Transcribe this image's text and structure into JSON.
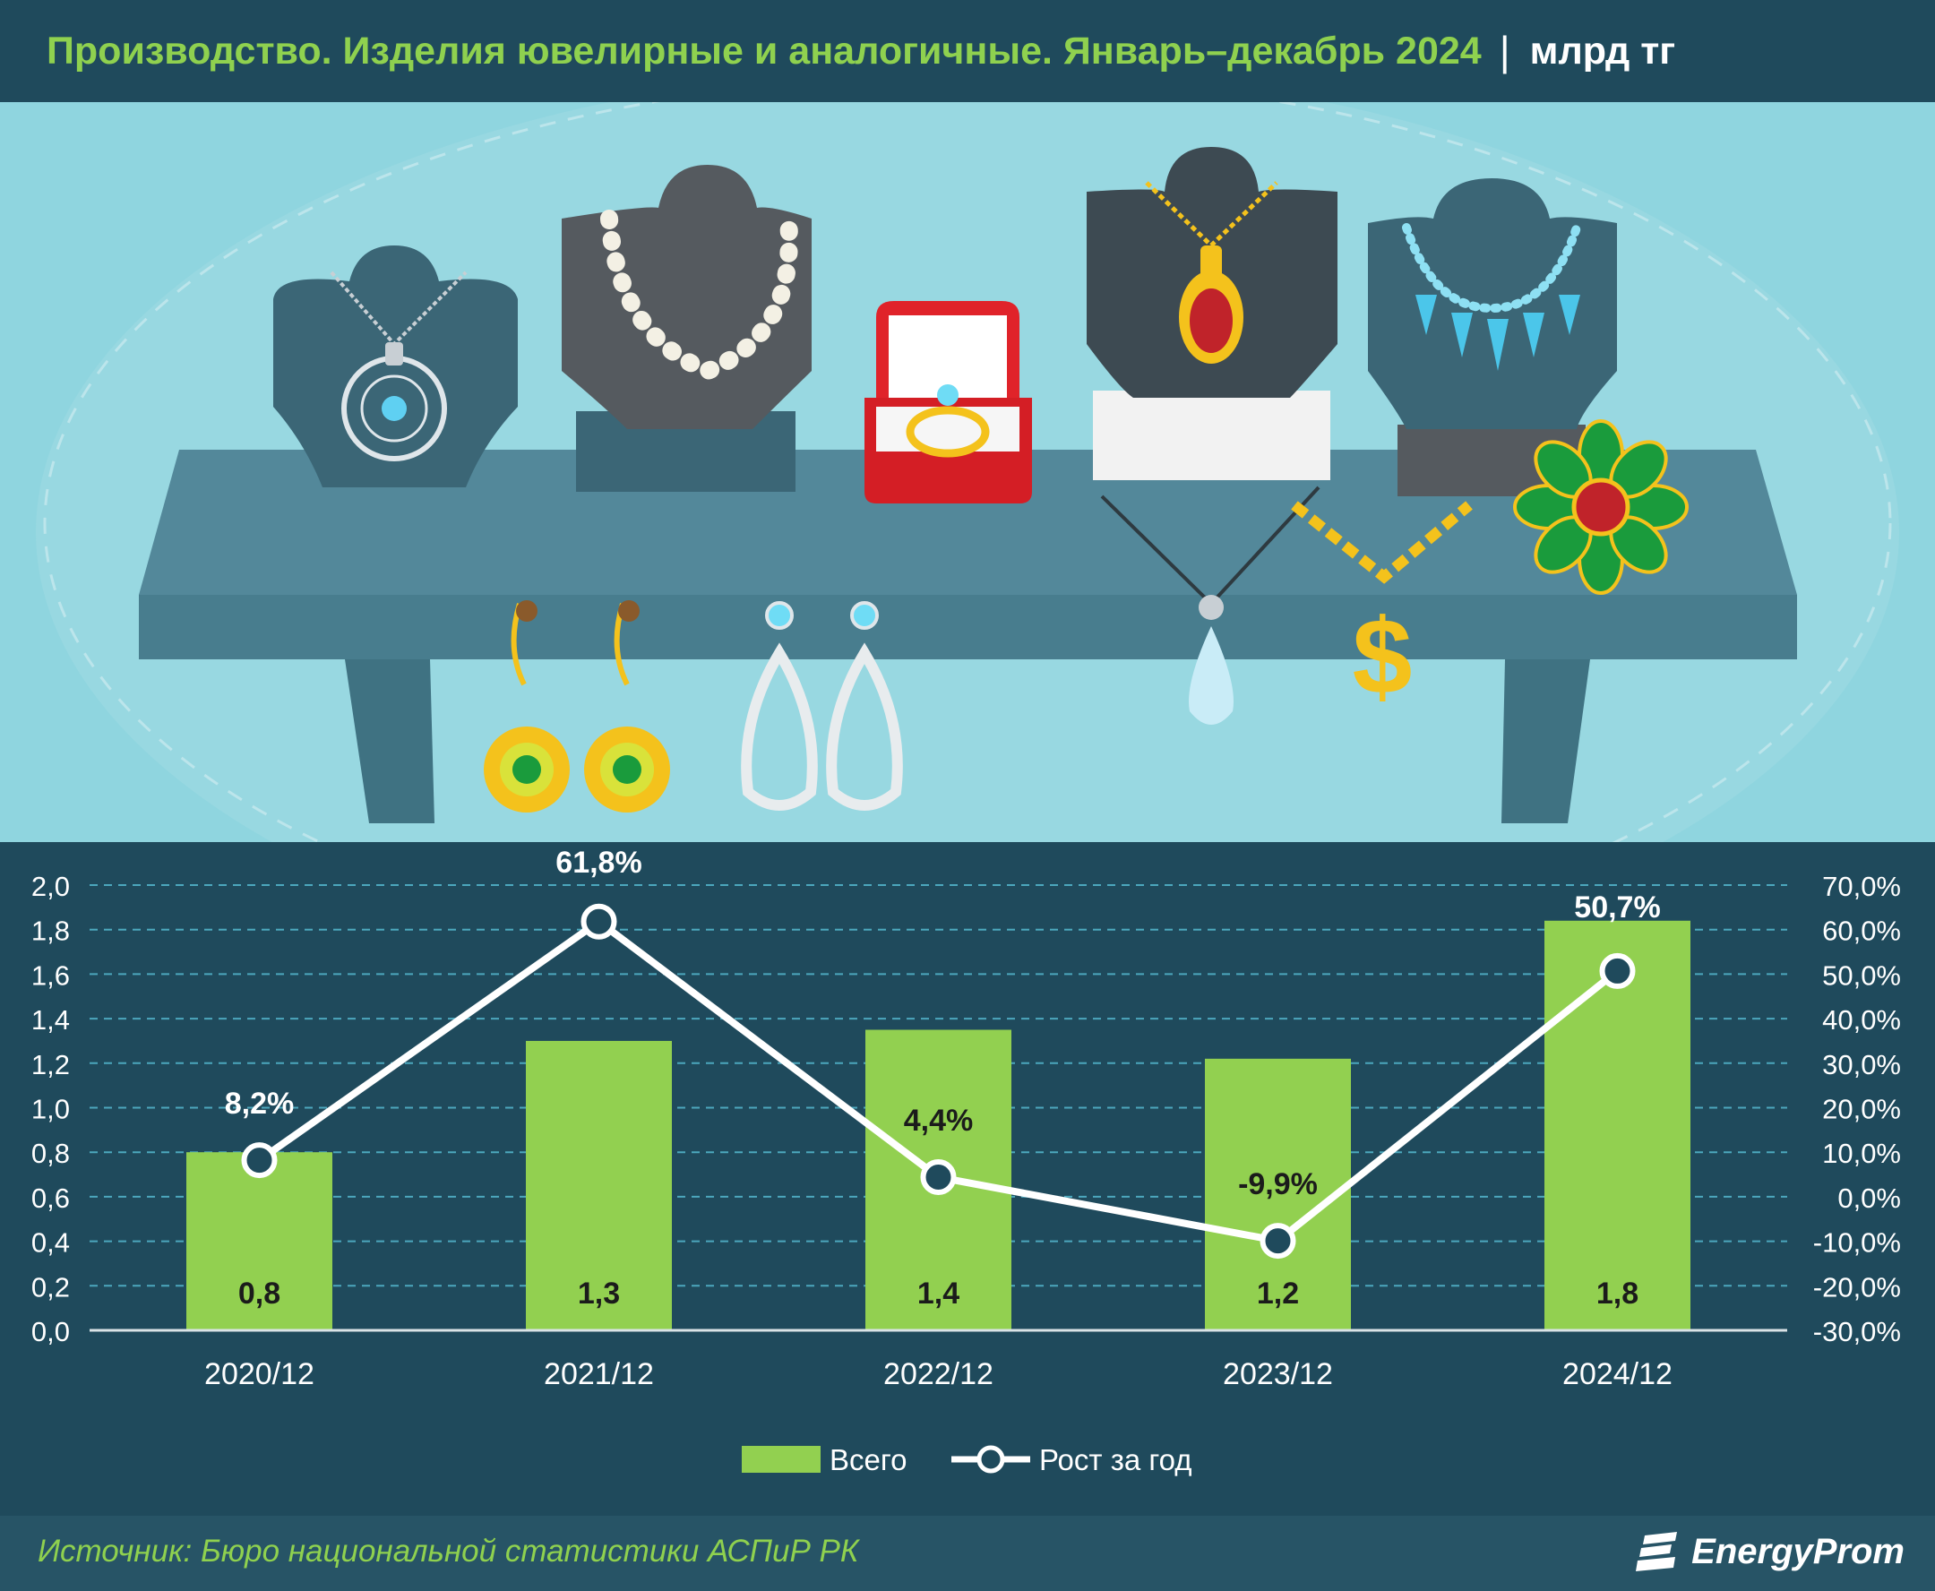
{
  "header": {
    "title": "Производство. Изделия ювелирные и аналогичные. Январь–декабрь 2024",
    "separator": "|",
    "unit": "млрд тг"
  },
  "footer": {
    "source": "Источник: Бюро национальной статистики АСПиР РК",
    "brand": "EnergyProm"
  },
  "colors": {
    "background": "#1f4a5c",
    "illustration_bg": "#8fd5df",
    "bar": "#92d050",
    "title": "#8fd14f",
    "line": "#ffffff",
    "grid": "#4ca7bd"
  },
  "chart_data": {
    "type": "bar",
    "categories": [
      "2020/12",
      "2021/12",
      "2022/12",
      "2023/12",
      "2024/12"
    ],
    "series": [
      {
        "name": "Всего",
        "kind": "bar",
        "axis": "left",
        "values": [
          0.8,
          1.3,
          1.4,
          1.2,
          1.8
        ],
        "labels": [
          "0,8",
          "1,3",
          "1,4",
          "1,2",
          "1,8"
        ]
      },
      {
        "name": "Рост за год",
        "kind": "line",
        "axis": "right",
        "values": [
          8.2,
          61.8,
          4.4,
          -9.9,
          50.7
        ],
        "labels": [
          "8,2%",
          "61,8%",
          "4,4%",
          "-9,9%",
          "50,7%"
        ]
      }
    ],
    "bar_heights_exact": [
      0.8,
      1.3,
      1.35,
      1.22,
      1.84
    ],
    "y_left": {
      "lim": [
        0,
        2
      ],
      "ticks": [
        0,
        0.2,
        0.4,
        0.6,
        0.8,
        1.0,
        1.2,
        1.4,
        1.6,
        1.8,
        2.0
      ],
      "tick_labels": [
        "0,0",
        "0,2",
        "0,4",
        "0,6",
        "0,8",
        "1,0",
        "1,2",
        "1,4",
        "1,6",
        "1,8",
        "2,0"
      ]
    },
    "y_right": {
      "lim": [
        -30,
        70
      ],
      "ticks": [
        -30,
        -20,
        -10,
        0,
        10,
        20,
        30,
        40,
        50,
        60,
        70
      ],
      "tick_labels": [
        "-30,0%",
        "-20,0%",
        "-10,0%",
        "0,0%",
        "10,0%",
        "20,0%",
        "30,0%",
        "40,0%",
        "50,0%",
        "60,0%",
        "70,0%"
      ]
    },
    "grid": true,
    "legend": {
      "position": "bottom",
      "items": [
        "Всего",
        "Рост за год"
      ]
    }
  }
}
